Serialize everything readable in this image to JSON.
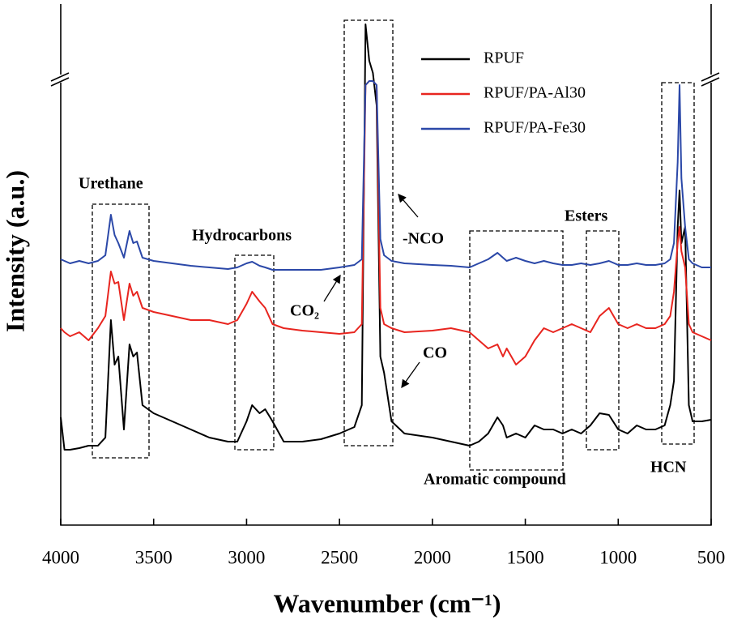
{
  "chart_data": {
    "type": "line",
    "x_label": "Wavenumber (cm⁻¹)",
    "y_label": "Intensity (a.u.)",
    "x": [
      4000,
      3980,
      3950,
      3900,
      3850,
      3800,
      3760,
      3730,
      3710,
      3690,
      3660,
      3630,
      3610,
      3590,
      3560,
      3500,
      3400,
      3300,
      3200,
      3100,
      3050,
      3000,
      2970,
      2930,
      2900,
      2860,
      2800,
      2700,
      2600,
      2500,
      2420,
      2380,
      2360,
      2340,
      2320,
      2300,
      2280,
      2260,
      2220,
      2150,
      2000,
      1900,
      1800,
      1750,
      1700,
      1650,
      1620,
      1600,
      1550,
      1500,
      1450,
      1400,
      1350,
      1300,
      1250,
      1200,
      1150,
      1100,
      1050,
      1000,
      950,
      900,
      850,
      800,
      750,
      720,
      700,
      680,
      670,
      660,
      640,
      620,
      600,
      550,
      500
    ],
    "series": [
      {
        "name": "RPUF",
        "color": "#000000",
        "values": [
          133,
          93,
          93,
          95,
          98,
          98,
          108,
          253,
          198,
          208,
          118,
          223,
          208,
          213,
          148,
          138,
          128,
          118,
          108,
          103,
          103,
          128,
          148,
          138,
          143,
          128,
          103,
          103,
          106,
          113,
          121,
          148,
          618,
          573,
          558,
          518,
          208,
          188,
          128,
          113,
          108,
          103,
          98,
          103,
          113,
          133,
          123,
          108,
          113,
          108,
          123,
          118,
          118,
          113,
          118,
          113,
          123,
          138,
          136,
          118,
          113,
          123,
          118,
          118,
          123,
          148,
          178,
          368,
          413,
          348,
          368,
          148,
          128,
          128,
          130
        ]
      },
      {
        "name": "RPUF/PA-Al30",
        "color": "#e8251f",
        "values": [
          243,
          238,
          233,
          238,
          228,
          243,
          258,
          313,
          298,
          300,
          253,
          298,
          283,
          288,
          268,
          263,
          258,
          253,
          253,
          248,
          253,
          273,
          288,
          276,
          268,
          248,
          243,
          240,
          238,
          236,
          238,
          248,
          543,
          548,
          548,
          543,
          268,
          248,
          243,
          238,
          240,
          243,
          238,
          228,
          218,
          223,
          208,
          218,
          198,
          208,
          228,
          243,
          238,
          243,
          248,
          243,
          238,
          258,
          268,
          248,
          243,
          248,
          243,
          243,
          248,
          258,
          288,
          348,
          368,
          338,
          318,
          248,
          238,
          233,
          228
        ]
      },
      {
        "name": "RPUF/PA-Fe30",
        "color": "#2b48a8",
        "values": [
          328,
          326,
          323,
          326,
          323,
          326,
          333,
          383,
          358,
          348,
          330,
          363,
          348,
          350,
          330,
          326,
          323,
          320,
          318,
          316,
          318,
          323,
          325,
          320,
          318,
          315,
          315,
          315,
          315,
          318,
          321,
          328,
          543,
          548,
          548,
          543,
          353,
          333,
          326,
          323,
          321,
          320,
          318,
          323,
          328,
          336,
          330,
          326,
          330,
          326,
          323,
          326,
          323,
          321,
          321,
          323,
          321,
          323,
          326,
          321,
          321,
          323,
          321,
          321,
          323,
          328,
          348,
          448,
          543,
          428,
          368,
          328,
          323,
          318,
          318
        ]
      }
    ],
    "xlim": [
      4000,
      500
    ],
    "xticks": [
      4000,
      3500,
      3000,
      2500,
      2000,
      1500,
      1000,
      500
    ],
    "ylim": [
      0,
      643
    ],
    "annotations": [
      "Urethane",
      "Hydrocarbons",
      "CO₂",
      "-NCO",
      "CO",
      "Esters",
      "Aromatic compound",
      "HCN"
    ]
  }
}
